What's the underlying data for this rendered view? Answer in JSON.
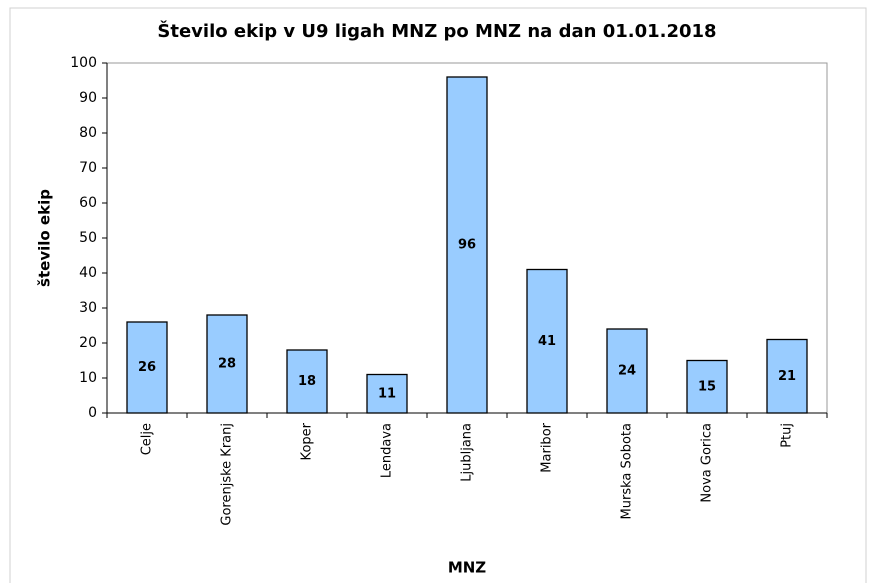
{
  "chart_data": {
    "type": "bar",
    "title": "Število ekip v U9 ligah MNZ po MNZ na dan 01.01.2018",
    "x_label": "MNZ",
    "y_label": "število ekip",
    "categories": [
      "Celje",
      "Gorenjske Kranj",
      "Koper",
      "Lendava",
      "Ljubljana",
      "Maribor",
      "Murska Sobota",
      "Nova Gorica",
      "Ptuj"
    ],
    "values": [
      26,
      28,
      18,
      11,
      96,
      41,
      24,
      15,
      21
    ],
    "color": "#99ccff",
    "ylim": [
      0,
      100
    ],
    "yticks": [
      0,
      10,
      20,
      30,
      40,
      50,
      60,
      70,
      80,
      90,
      100
    ],
    "grid": false
  }
}
